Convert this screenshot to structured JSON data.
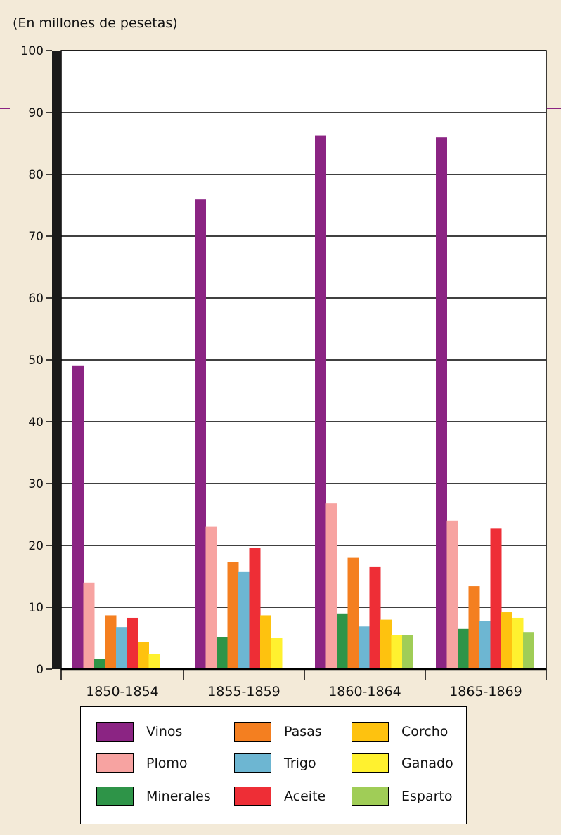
{
  "chart_data": {
    "type": "bar",
    "title": "",
    "ylabel": "(En millones de pesetas)",
    "xlabel": "",
    "ylim": [
      0,
      100
    ],
    "yticks": [
      0,
      10,
      20,
      30,
      40,
      50,
      60,
      70,
      80,
      90,
      100
    ],
    "grid": true,
    "legend_position": "bottom",
    "categories": [
      "1850-1854",
      "1855-1859",
      "1860-1864",
      "1865-1869"
    ],
    "series": [
      {
        "name": "Vinos",
        "color": "#8b2483",
        "values": [
          49,
          76,
          86.3,
          86
        ]
      },
      {
        "name": "Plomo",
        "color": "#f7a3a1",
        "values": [
          14,
          23,
          26.8,
          24
        ]
      },
      {
        "name": "Minerales",
        "color": "#2e9448",
        "values": [
          1.6,
          5.2,
          9,
          6.5
        ]
      },
      {
        "name": "Pasas",
        "color": "#f47f20",
        "values": [
          8.7,
          17.3,
          18,
          13.4
        ]
      },
      {
        "name": "Trigo",
        "color": "#6db6d2",
        "values": [
          6.8,
          15.7,
          6.9,
          7.8
        ]
      },
      {
        "name": "Aceite",
        "color": "#ee2e36",
        "values": [
          8.3,
          19.6,
          16.6,
          22.8
        ]
      },
      {
        "name": "Corcho",
        "color": "#fec20f",
        "values": [
          4.4,
          8.7,
          8,
          9.2
        ]
      },
      {
        "name": "Ganado",
        "color": "#fff12f",
        "values": [
          2.4,
          5,
          5.5,
          8.3
        ]
      },
      {
        "name": "Esparto",
        "color": "#a0cd57",
        "values": [
          0,
          0,
          5.5,
          6
        ]
      }
    ]
  },
  "legend": {
    "columns": [
      [
        "Vinos",
        "Plomo",
        "Minerales"
      ],
      [
        "Pasas",
        "Trigo",
        "Aceite"
      ],
      [
        "Corcho",
        "Ganado",
        "Esparto"
      ]
    ]
  },
  "colors": {
    "background": "#f3ead8",
    "plot_background": "#ffffff",
    "axis_bar": "#1a1a1a",
    "accent_rule": "#8b2483"
  }
}
